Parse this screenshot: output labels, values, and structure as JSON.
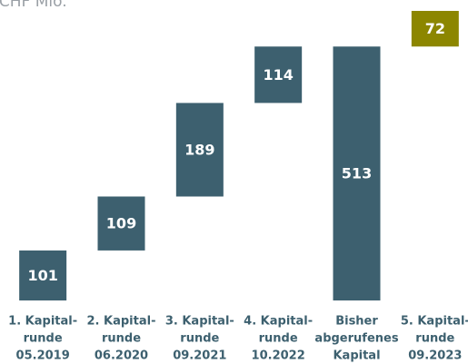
{
  "chart_data": {
    "type": "waterfall",
    "title": "in CHF Mio.",
    "categories": [
      [
        "1. Kapital-",
        "runde",
        "05.2019"
      ],
      [
        "2. Kapital-",
        "runde",
        "06.2020"
      ],
      [
        "3. Kapital-",
        "runde",
        "09.2021"
      ],
      [
        "4. Kapital-",
        "runde",
        "10.2022"
      ],
      [
        "Bisher",
        "abgerufenes",
        "Kapital"
      ],
      [
        "5. Kapital-",
        "runde",
        "09.2023"
      ]
    ],
    "values": [
      101,
      109,
      189,
      114,
      513,
      72
    ],
    "measure": [
      "relative",
      "relative",
      "relative",
      "relative",
      "total",
      "relative"
    ],
    "colors": [
      "#3d606f",
      "#3d606f",
      "#3d606f",
      "#3d606f",
      "#3d606f",
      "#8c8600"
    ],
    "ylim": [
      0,
      585
    ]
  }
}
